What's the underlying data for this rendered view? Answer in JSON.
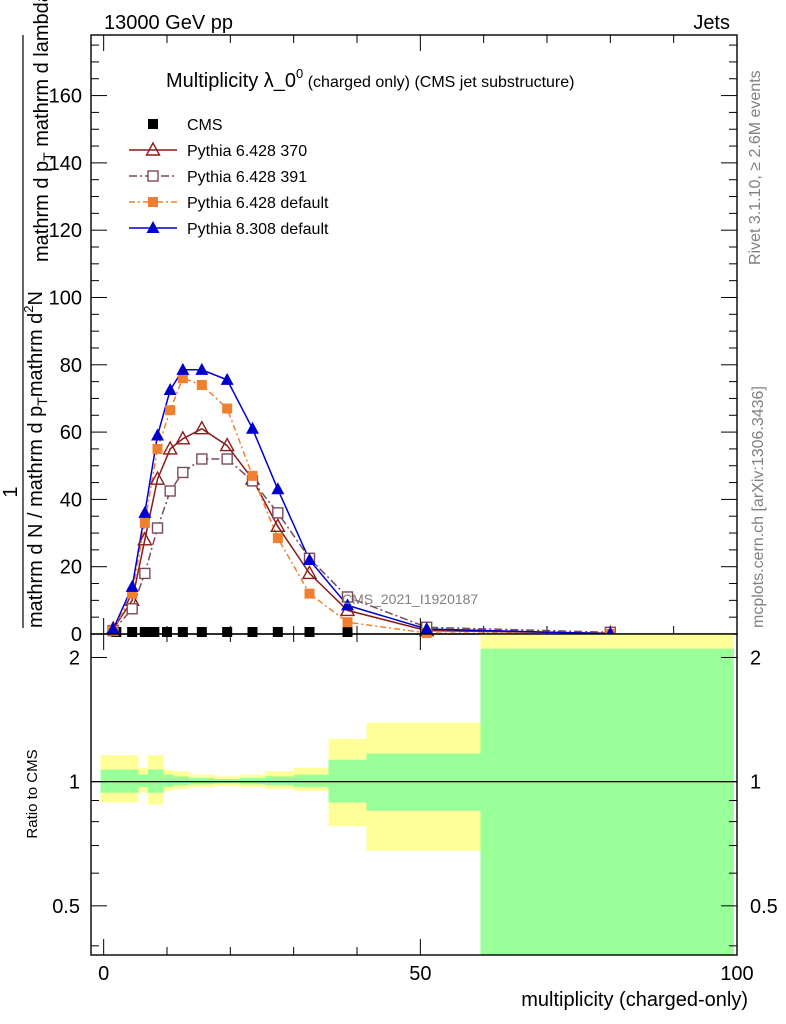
{
  "header": {
    "left": "13000 GeV pp",
    "right": "Jets"
  },
  "side": {
    "rivet": "Rivet 3.1.10, ≥ 2.6M events",
    "mcplots": "mcplots.cern.ch [arXiv:1306.3436]"
  },
  "watermark": "CMS_2021_I1920187",
  "chart_data": [
    {
      "type": "line",
      "title_main": "Multiplicity λ_0",
      "title_sup": "0",
      "title_small": " (charged only) (CMS jet substructure)",
      "ylabel_top": "1",
      "ylabel_denom": "mathrm d N / mathrm d p",
      "ylabel_denom_sub": "T",
      "ylabel_num": "mathrm d",
      "ylabel_num_sup": "2",
      "ylabel_num_rest": "N",
      "ylabel_num2": "mathrm d p",
      "ylabel_num2_sub": "T",
      "ylabel_num2_rest": " mathrm d lambda",
      "xlim": [
        -2,
        100
      ],
      "ylim": [
        0,
        178
      ],
      "yticks": [
        "0",
        "20",
        "40",
        "60",
        "80",
        "100",
        "120",
        "140",
        "160"
      ],
      "legend_position": "top-left",
      "series": [
        {
          "name": "CMS",
          "color": "#000000",
          "marker": "square",
          "x": [
            2,
            4.5,
            6.5,
            8,
            10,
            12.5,
            15.5,
            19.5,
            23.5,
            27.5,
            32.5,
            38.5
          ],
          "y": [
            0,
            0,
            0,
            0,
            0,
            0,
            0,
            0,
            0,
            0,
            0,
            0
          ]
        },
        {
          "name": "Pythia 6.428 370",
          "color": "#8b1a1a",
          "marker": "triangle-open",
          "dash": "",
          "x": [
            1.5,
            4.5,
            6.5,
            8.5,
            10.5,
            12.5,
            15.5,
            19.5,
            23.5,
            27.5,
            32.5,
            38.5,
            51,
            80
          ],
          "y": [
            1.5,
            10,
            28,
            46,
            55,
            58,
            61,
            56,
            46,
            32,
            18,
            7,
            1,
            0.2
          ]
        },
        {
          "name": "Pythia 6.428 391",
          "color": "#7a4a5a",
          "marker": "square-open",
          "dash": "8,3,2,3",
          "x": [
            1.5,
            4.5,
            6.5,
            8.5,
            10.5,
            12.5,
            15.5,
            19.5,
            23.5,
            27.5,
            32.5,
            38.5,
            51,
            80
          ],
          "y": [
            1,
            7.5,
            18,
            31.5,
            42.5,
            48,
            52,
            52,
            45.5,
            36,
            22.5,
            11,
            2,
            0.5
          ]
        },
        {
          "name": "Pythia 6.428 default",
          "color": "#f08030",
          "marker": "square",
          "dash": "6,3,2,3",
          "x": [
            1.5,
            4.5,
            6.5,
            8.5,
            10.5,
            12.5,
            15.5,
            19.5,
            23.5,
            27.5,
            32.5,
            38.5,
            51,
            80
          ],
          "y": [
            1,
            12,
            33,
            55,
            66.5,
            76,
            74,
            67,
            47,
            28.5,
            12,
            3.5,
            0.3,
            0.05
          ]
        },
        {
          "name": "Pythia 8.308 default",
          "color": "#0000cc",
          "marker": "triangle",
          "dash": "",
          "x": [
            1.5,
            4.5,
            6.5,
            8.5,
            10.5,
            12.5,
            15.5,
            19.5,
            23.5,
            27.5,
            32.5,
            38.5,
            51,
            80
          ],
          "y": [
            1.5,
            14,
            36,
            59,
            72.5,
            78.5,
            78.5,
            75.5,
            61,
            43,
            22,
            8.5,
            1.5,
            0.1
          ]
        }
      ]
    },
    {
      "type": "area",
      "ylabel": "Ratio to CMS",
      "xlabel": "multiplicity (charged-only)",
      "xlim": [
        -2,
        100
      ],
      "ylim": [
        0.38,
        2.28
      ],
      "yscale": "log",
      "xticks": [
        "0",
        "50",
        "100"
      ],
      "yticks": [
        "0.5",
        "1",
        "2"
      ],
      "band_colors": {
        "outer": "#ffff99",
        "inner": "#99ff99",
        "line": "#000000"
      },
      "bins": [
        {
          "x0": -0.5,
          "x1": 5.5,
          "lo2": 0.89,
          "hi2": 1.16,
          "lo1": 0.94,
          "hi1": 1.07
        },
        {
          "x0": 5.5,
          "x1": 7,
          "lo2": 0.94,
          "hi2": 1.08,
          "lo1": 0.97,
          "hi1": 1.04
        },
        {
          "x0": 7,
          "x1": 9.5,
          "lo2": 0.88,
          "hi2": 1.16,
          "lo1": 0.94,
          "hi1": 1.07
        },
        {
          "x0": 9.5,
          "x1": 11,
          "lo2": 0.95,
          "hi2": 1.07,
          "lo1": 0.97,
          "hi1": 1.04
        },
        {
          "x0": 11,
          "x1": 13.5,
          "lo2": 0.96,
          "hi2": 1.06,
          "lo1": 0.98,
          "hi1": 1.03
        },
        {
          "x0": 13.5,
          "x1": 17.5,
          "lo2": 0.97,
          "hi2": 1.04,
          "lo1": 0.985,
          "hi1": 1.02
        },
        {
          "x0": 17.5,
          "x1": 21.5,
          "lo2": 0.975,
          "hi2": 1.03,
          "lo1": 0.99,
          "hi1": 1.015
        },
        {
          "x0": 21.5,
          "x1": 25.5,
          "lo2": 0.97,
          "hi2": 1.04,
          "lo1": 0.985,
          "hi1": 1.02
        },
        {
          "x0": 25.5,
          "x1": 30,
          "lo2": 0.96,
          "hi2": 1.06,
          "lo1": 0.98,
          "hi1": 1.03
        },
        {
          "x0": 30,
          "x1": 35.5,
          "lo2": 0.95,
          "hi2": 1.08,
          "lo1": 0.97,
          "hi1": 1.04
        },
        {
          "x0": 35.5,
          "x1": 41.5,
          "lo2": 0.78,
          "hi2": 1.27,
          "lo1": 0.89,
          "hi1": 1.13
        },
        {
          "x0": 41.5,
          "x1": 59.5,
          "lo2": 0.68,
          "hi2": 1.39,
          "lo1": 0.85,
          "hi1": 1.17
        },
        {
          "x0": 59.5,
          "x1": 99.5,
          "lo2": 0.38,
          "hi2": 2.28,
          "lo1": 0.38,
          "hi1": 2.1
        }
      ]
    }
  ]
}
